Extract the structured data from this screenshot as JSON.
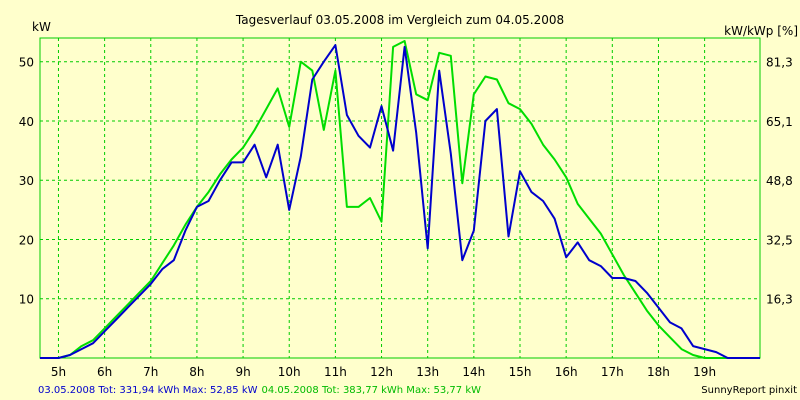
{
  "chart_data": {
    "type": "line",
    "title": "Tagesverlauf 03.05.2008 im Vergleich zum 04.05.2008",
    "ylabel_left": "kW",
    "ylabel_right": "kW/kWp [%]",
    "x_ticks": [
      "5h",
      "6h",
      "7h",
      "8h",
      "9h",
      "10h",
      "11h",
      "12h",
      "13h",
      "14h",
      "15h",
      "16h",
      "17h",
      "18h",
      "19h"
    ],
    "x_range": [
      4.6,
      20.2
    ],
    "ylim": [
      0,
      54
    ],
    "y_ticks_left": [
      10,
      20,
      30,
      40,
      50
    ],
    "y_ticks_right": [
      "16,3",
      "32,5",
      "48,8",
      "65,1",
      "81,3"
    ],
    "grid": true,
    "colors": {
      "background": "#ffffcc",
      "grid": "#00cc00",
      "series1": "#0000cc",
      "series2": "#00dd00"
    },
    "series": [
      {
        "name": "03.05.2008",
        "color": "#0000cc",
        "x": [
          4.6,
          5.0,
          5.25,
          5.5,
          5.75,
          6.0,
          6.25,
          6.5,
          6.75,
          7.0,
          7.25,
          7.5,
          7.75,
          8.0,
          8.25,
          8.5,
          8.75,
          9.0,
          9.25,
          9.5,
          9.75,
          10.0,
          10.25,
          10.5,
          10.75,
          11.0,
          11.25,
          11.5,
          11.75,
          12.0,
          12.25,
          12.5,
          12.75,
          13.0,
          13.25,
          13.5,
          13.75,
          14.0,
          14.25,
          14.5,
          14.75,
          15.0,
          15.25,
          15.5,
          15.75,
          16.0,
          16.25,
          16.5,
          16.75,
          17.0,
          17.25,
          17.5,
          17.75,
          18.0,
          18.25,
          18.5,
          18.75,
          19.0,
          19.25,
          19.5,
          19.75,
          20.2
        ],
        "y": [
          0,
          0,
          0.5,
          1.5,
          2.5,
          4.5,
          6.5,
          8.5,
          10.5,
          12.5,
          15,
          16.5,
          21.5,
          25.5,
          26.5,
          30,
          33,
          33,
          36,
          30.5,
          36,
          25,
          34,
          47,
          50,
          52.8,
          41,
          37.5,
          35.5,
          42.5,
          35,
          52.5,
          38,
          18.5,
          48.5,
          34.5,
          16.5,
          21.5,
          40,
          42,
          20.5,
          31.5,
          28,
          26.5,
          23.5,
          17,
          19.5,
          16.5,
          15.5,
          13.5,
          13.5,
          13,
          11,
          8.5,
          6,
          5,
          2,
          1.5,
          1,
          0,
          0,
          0
        ]
      },
      {
        "name": "04.05.2008",
        "color": "#00dd00",
        "x": [
          4.6,
          5.0,
          5.25,
          5.5,
          5.75,
          6.0,
          6.25,
          6.5,
          6.75,
          7.0,
          7.25,
          7.5,
          7.75,
          8.0,
          8.25,
          8.5,
          8.75,
          9.0,
          9.25,
          9.5,
          9.75,
          10.0,
          10.25,
          10.5,
          10.75,
          11.0,
          11.25,
          11.5,
          11.75,
          12.0,
          12.25,
          12.5,
          12.75,
          13.0,
          13.25,
          13.5,
          13.75,
          14.0,
          14.25,
          14.5,
          14.75,
          15.0,
          15.25,
          15.5,
          15.75,
          16.0,
          16.25,
          16.5,
          16.75,
          17.0,
          17.25,
          17.5,
          17.75,
          18.0,
          18.25,
          18.5,
          18.75,
          19.0,
          19.25,
          19.5,
          19.75,
          20.2
        ],
        "y": [
          0,
          0,
          0.5,
          2,
          3,
          5,
          7,
          9,
          11,
          13,
          16,
          19,
          22.5,
          25.5,
          28,
          31,
          33.5,
          35.5,
          38.5,
          42,
          45.5,
          39,
          50,
          48.5,
          38.5,
          48.5,
          25.5,
          25.5,
          27,
          23,
          52.5,
          53.5,
          44.5,
          43.5,
          51.5,
          51,
          29.5,
          44.5,
          47.5,
          47,
          43,
          42,
          39.5,
          36,
          33.5,
          30.5,
          26,
          23.5,
          21,
          17.5,
          14,
          11,
          8,
          5.5,
          3.5,
          1.5,
          0.5,
          0,
          0,
          0,
          0,
          0
        ]
      }
    ]
  },
  "footer": {
    "s1_text": "03.05.2008 Tot: 331,94 kWh Max: 52,85 kW",
    "s2_text": "04.05.2008 Tot: 383,77 kWh Max: 53,77 kW",
    "credit": "SunnyReport pinxit"
  }
}
